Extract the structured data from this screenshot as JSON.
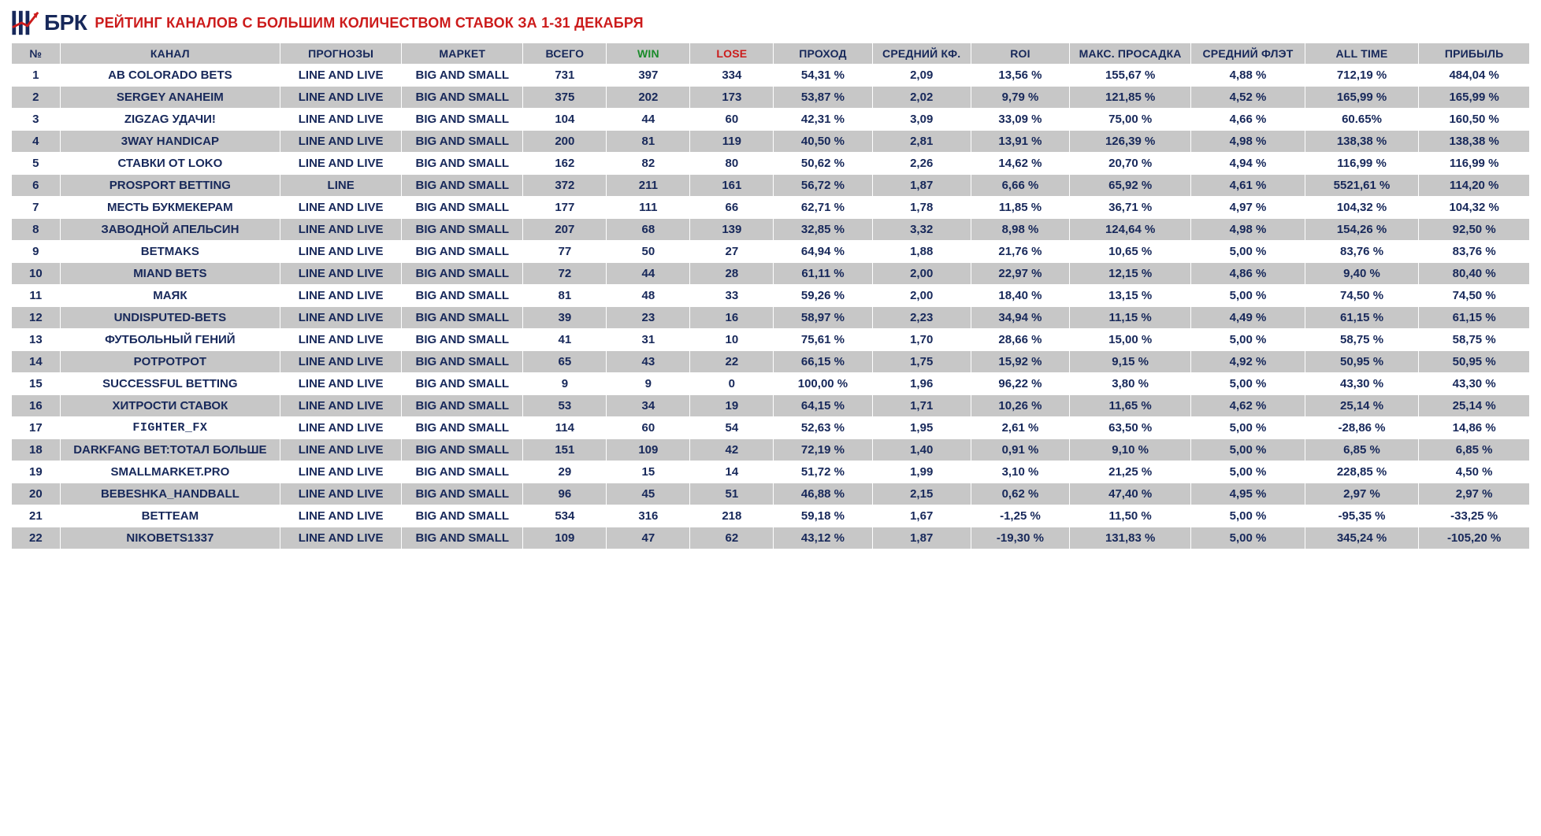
{
  "logo_text": "БРК",
  "title": "РЕЙТИНГ КАНАЛОВ С БОЛЬШИМ КОЛИЧЕСТВОМ СТАВОК ЗА 1-31 ДЕКАБРЯ",
  "colors": {
    "brand_dark": "#17285a",
    "brand_red": "#cc1b1b",
    "row_alt": "#c7c7c7",
    "row_bg": "#ffffff",
    "win": "#1a8b2a",
    "lose": "#cc1b1b",
    "border": "#ffffff"
  },
  "columns": [
    "№",
    "КАНАЛ",
    "ПРОГНОЗЫ",
    "МАРКЕТ",
    "ВСЕГО",
    "WIN",
    "LOSE",
    "ПРОХОД",
    "СРЕДНИЙ КФ.",
    "ROI",
    "МАКС. ПРОСАДКА",
    "СРЕДНИЙ ФЛЭТ",
    "ALL TIME",
    "ПРИБЫЛЬ"
  ],
  "rows": [
    {
      "n": "1",
      "ch": "AB COLORADO BETS",
      "prg": "LINE AND LIVE",
      "mkt": "BIG AND SMALL",
      "tot": "731",
      "win": "397",
      "lose": "334",
      "pass": "54,31 %",
      "avg": "2,09",
      "roi": "13,56 %",
      "dd": "155,67 %",
      "flat": "4,88 %",
      "at": "712,19 %",
      "prof": "484,04 %"
    },
    {
      "n": "2",
      "ch": "SERGEY ANAHEIM",
      "prg": "LINE AND LIVE",
      "mkt": "BIG AND SMALL",
      "tot": "375",
      "win": "202",
      "lose": "173",
      "pass": "53,87 %",
      "avg": "2,02",
      "roi": "9,79 %",
      "dd": "121,85 %",
      "flat": "4,52 %",
      "at": "165,99 %",
      "prof": "165,99 %"
    },
    {
      "n": "3",
      "ch": "ZIGZAG УДАЧИ!",
      "prg": "LINE AND LIVE",
      "mkt": "BIG AND SMALL",
      "tot": "104",
      "win": "44",
      "lose": "60",
      "pass": "42,31 %",
      "avg": "3,09",
      "roi": "33,09 %",
      "dd": "75,00 %",
      "flat": "4,66 %",
      "at": "60.65%",
      "prof": "160,50 %"
    },
    {
      "n": "4",
      "ch": "3WAY HANDICAP",
      "prg": "LINE AND LIVE",
      "mkt": "BIG AND SMALL",
      "tot": "200",
      "win": "81",
      "lose": "119",
      "pass": "40,50 %",
      "avg": "2,81",
      "roi": "13,91 %",
      "dd": "126,39 %",
      "flat": "4,98 %",
      "at": "138,38 %",
      "prof": "138,38 %"
    },
    {
      "n": "5",
      "ch": "СТАВКИ ОТ LOKO",
      "prg": "LINE AND LIVE",
      "mkt": "BIG AND SMALL",
      "tot": "162",
      "win": "82",
      "lose": "80",
      "pass": "50,62 %",
      "avg": "2,26",
      "roi": "14,62 %",
      "dd": "20,70 %",
      "flat": "4,94 %",
      "at": "116,99 %",
      "prof": "116,99 %"
    },
    {
      "n": "6",
      "ch": "PROSPORT BETTING",
      "prg": "LINE",
      "mkt": "BIG AND SMALL",
      "tot": "372",
      "win": "211",
      "lose": "161",
      "pass": "56,72 %",
      "avg": "1,87",
      "roi": "6,66 %",
      "dd": "65,92 %",
      "flat": "4,61 %",
      "at": "5521,61 %",
      "prof": "114,20 %"
    },
    {
      "n": "7",
      "ch": "МЕСТЬ БУКМЕКЕРАМ",
      "prg": "LINE AND LIVE",
      "mkt": "BIG AND SMALL",
      "tot": "177",
      "win": "111",
      "lose": "66",
      "pass": "62,71 %",
      "avg": "1,78",
      "roi": "11,85 %",
      "dd": "36,71 %",
      "flat": "4,97 %",
      "at": "104,32 %",
      "prof": "104,32 %"
    },
    {
      "n": "8",
      "ch": "ЗАВОДНОЙ АПЕЛЬСИН",
      "prg": "LINE AND LIVE",
      "mkt": "BIG AND SMALL",
      "tot": "207",
      "win": "68",
      "lose": "139",
      "pass": "32,85 %",
      "avg": "3,32",
      "roi": "8,98 %",
      "dd": "124,64 %",
      "flat": "4,98 %",
      "at": "154,26 %",
      "prof": "92,50 %"
    },
    {
      "n": "9",
      "ch": "BETMAKS",
      "prg": "LINE AND LIVE",
      "mkt": "BIG AND SMALL",
      "tot": "77",
      "win": "50",
      "lose": "27",
      "pass": "64,94 %",
      "avg": "1,88",
      "roi": "21,76 %",
      "dd": "10,65 %",
      "flat": "5,00 %",
      "at": "83,76 %",
      "prof": "83,76 %"
    },
    {
      "n": "10",
      "ch": "MIAND BETS",
      "prg": "LINE AND LIVE",
      "mkt": "BIG AND SMALL",
      "tot": "72",
      "win": "44",
      "lose": "28",
      "pass": "61,11 %",
      "avg": "2,00",
      "roi": "22,97 %",
      "dd": "12,15 %",
      "flat": "4,86 %",
      "at": "9,40 %",
      "prof": "80,40 %"
    },
    {
      "n": "11",
      "ch": "МАЯК",
      "prg": "LINE AND LIVE",
      "mkt": "BIG AND SMALL",
      "tot": "81",
      "win": "48",
      "lose": "33",
      "pass": "59,26 %",
      "avg": "2,00",
      "roi": "18,40 %",
      "dd": "13,15 %",
      "flat": "5,00 %",
      "at": "74,50 %",
      "prof": "74,50 %"
    },
    {
      "n": "12",
      "ch": "UNDISPUTED-BETS",
      "prg": "LINE AND LIVE",
      "mkt": "BIG AND SMALL",
      "tot": "39",
      "win": "23",
      "lose": "16",
      "pass": "58,97 %",
      "avg": "2,23",
      "roi": "34,94 %",
      "dd": "11,15 %",
      "flat": "4,49 %",
      "at": "61,15 %",
      "prof": "61,15 %"
    },
    {
      "n": "13",
      "ch": "ФУТБОЛЬНЫЙ ГЕНИЙ",
      "prg": "LINE AND LIVE",
      "mkt": "BIG AND SMALL",
      "tot": "41",
      "win": "31",
      "lose": "10",
      "pass": "75,61 %",
      "avg": "1,70",
      "roi": "28,66 %",
      "dd": "15,00 %",
      "flat": "5,00 %",
      "at": "58,75 %",
      "prof": "58,75 %"
    },
    {
      "n": "14",
      "ch": "POTPOTPOT",
      "prg": "LINE AND LIVE",
      "mkt": "BIG AND SMALL",
      "tot": "65",
      "win": "43",
      "lose": "22",
      "pass": "66,15 %",
      "avg": "1,75",
      "roi": "15,92 %",
      "dd": "9,15 %",
      "flat": "4,92 %",
      "at": "50,95 %",
      "prof": "50,95 %"
    },
    {
      "n": "15",
      "ch": "SUCCESSFUL BETTING",
      "prg": "LINE AND LIVE",
      "mkt": "BIG AND SMALL",
      "tot": "9",
      "win": "9",
      "lose": "0",
      "pass": "100,00 %",
      "avg": "1,96",
      "roi": "96,22 %",
      "dd": "3,80 %",
      "flat": "5,00 %",
      "at": "43,30 %",
      "prof": "43,30 %"
    },
    {
      "n": "16",
      "ch": "ХИТРОСТИ СТАВОК",
      "prg": "LINE AND LIVE",
      "mkt": "BIG AND SMALL",
      "tot": "53",
      "win": "34",
      "lose": "19",
      "pass": "64,15 %",
      "avg": "1,71",
      "roi": "10,26 %",
      "dd": "11,65 %",
      "flat": "4,62 %",
      "at": "25,14 %",
      "prof": "25,14 %"
    },
    {
      "n": "17",
      "ch": "FIGHTER_FX",
      "prg": "LINE AND LIVE",
      "mkt": "BIG AND SMALL",
      "tot": "114",
      "win": "60",
      "lose": "54",
      "pass": "52,63 %",
      "avg": "1,95",
      "roi": "2,61 %",
      "dd": "63,50 %",
      "flat": "5,00 %",
      "at": "-28,86 %",
      "prof": "14,86 %",
      "chclass": "fighter"
    },
    {
      "n": "18",
      "ch": "DARKFANG BET:ТОТАЛ БОЛЬШЕ",
      "prg": "LINE AND LIVE",
      "mkt": "BIG AND SMALL",
      "tot": "151",
      "win": "109",
      "lose": "42",
      "pass": "72,19 %",
      "avg": "1,40",
      "roi": "0,91 %",
      "dd": "9,10 %",
      "flat": "5,00 %",
      "at": "6,85 %",
      "prof": "6,85 %"
    },
    {
      "n": "19",
      "ch": "SMALLMARKET.PRO",
      "prg": "LINE AND LIVE",
      "mkt": "BIG AND SMALL",
      "tot": "29",
      "win": "15",
      "lose": "14",
      "pass": "51,72 %",
      "avg": "1,99",
      "roi": "3,10 %",
      "dd": "21,25 %",
      "flat": "5,00 %",
      "at": "228,85 %",
      "prof": "4,50 %"
    },
    {
      "n": "20",
      "ch": "BEBESHKA_HANDBALL",
      "prg": "LINE AND LIVE",
      "mkt": "BIG AND SMALL",
      "tot": "96",
      "win": "45",
      "lose": "51",
      "pass": "46,88 %",
      "avg": "2,15",
      "roi": "0,62 %",
      "dd": "47,40 %",
      "flat": "4,95 %",
      "at": "2,97 %",
      "prof": "2,97 %"
    },
    {
      "n": "21",
      "ch": "BETTEAM",
      "prg": "LINE AND LIVE",
      "mkt": "BIG AND SMALL",
      "tot": "534",
      "win": "316",
      "lose": "218",
      "pass": "59,18 %",
      "avg": "1,67",
      "roi": "-1,25 %",
      "dd": "11,50 %",
      "flat": "5,00 %",
      "at": "-95,35 %",
      "prof": "-33,25 %"
    },
    {
      "n": "22",
      "ch": "NIKOBETS1337",
      "prg": "LINE AND LIVE",
      "mkt": "BIG AND SMALL",
      "tot": "109",
      "win": "47",
      "lose": "62",
      "pass": "43,12 %",
      "avg": "1,87",
      "roi": "-19,30 %",
      "dd": "131,83 %",
      "flat": "5,00 %",
      "at": "345,24 %",
      "prof": "-105,20 %"
    }
  ]
}
